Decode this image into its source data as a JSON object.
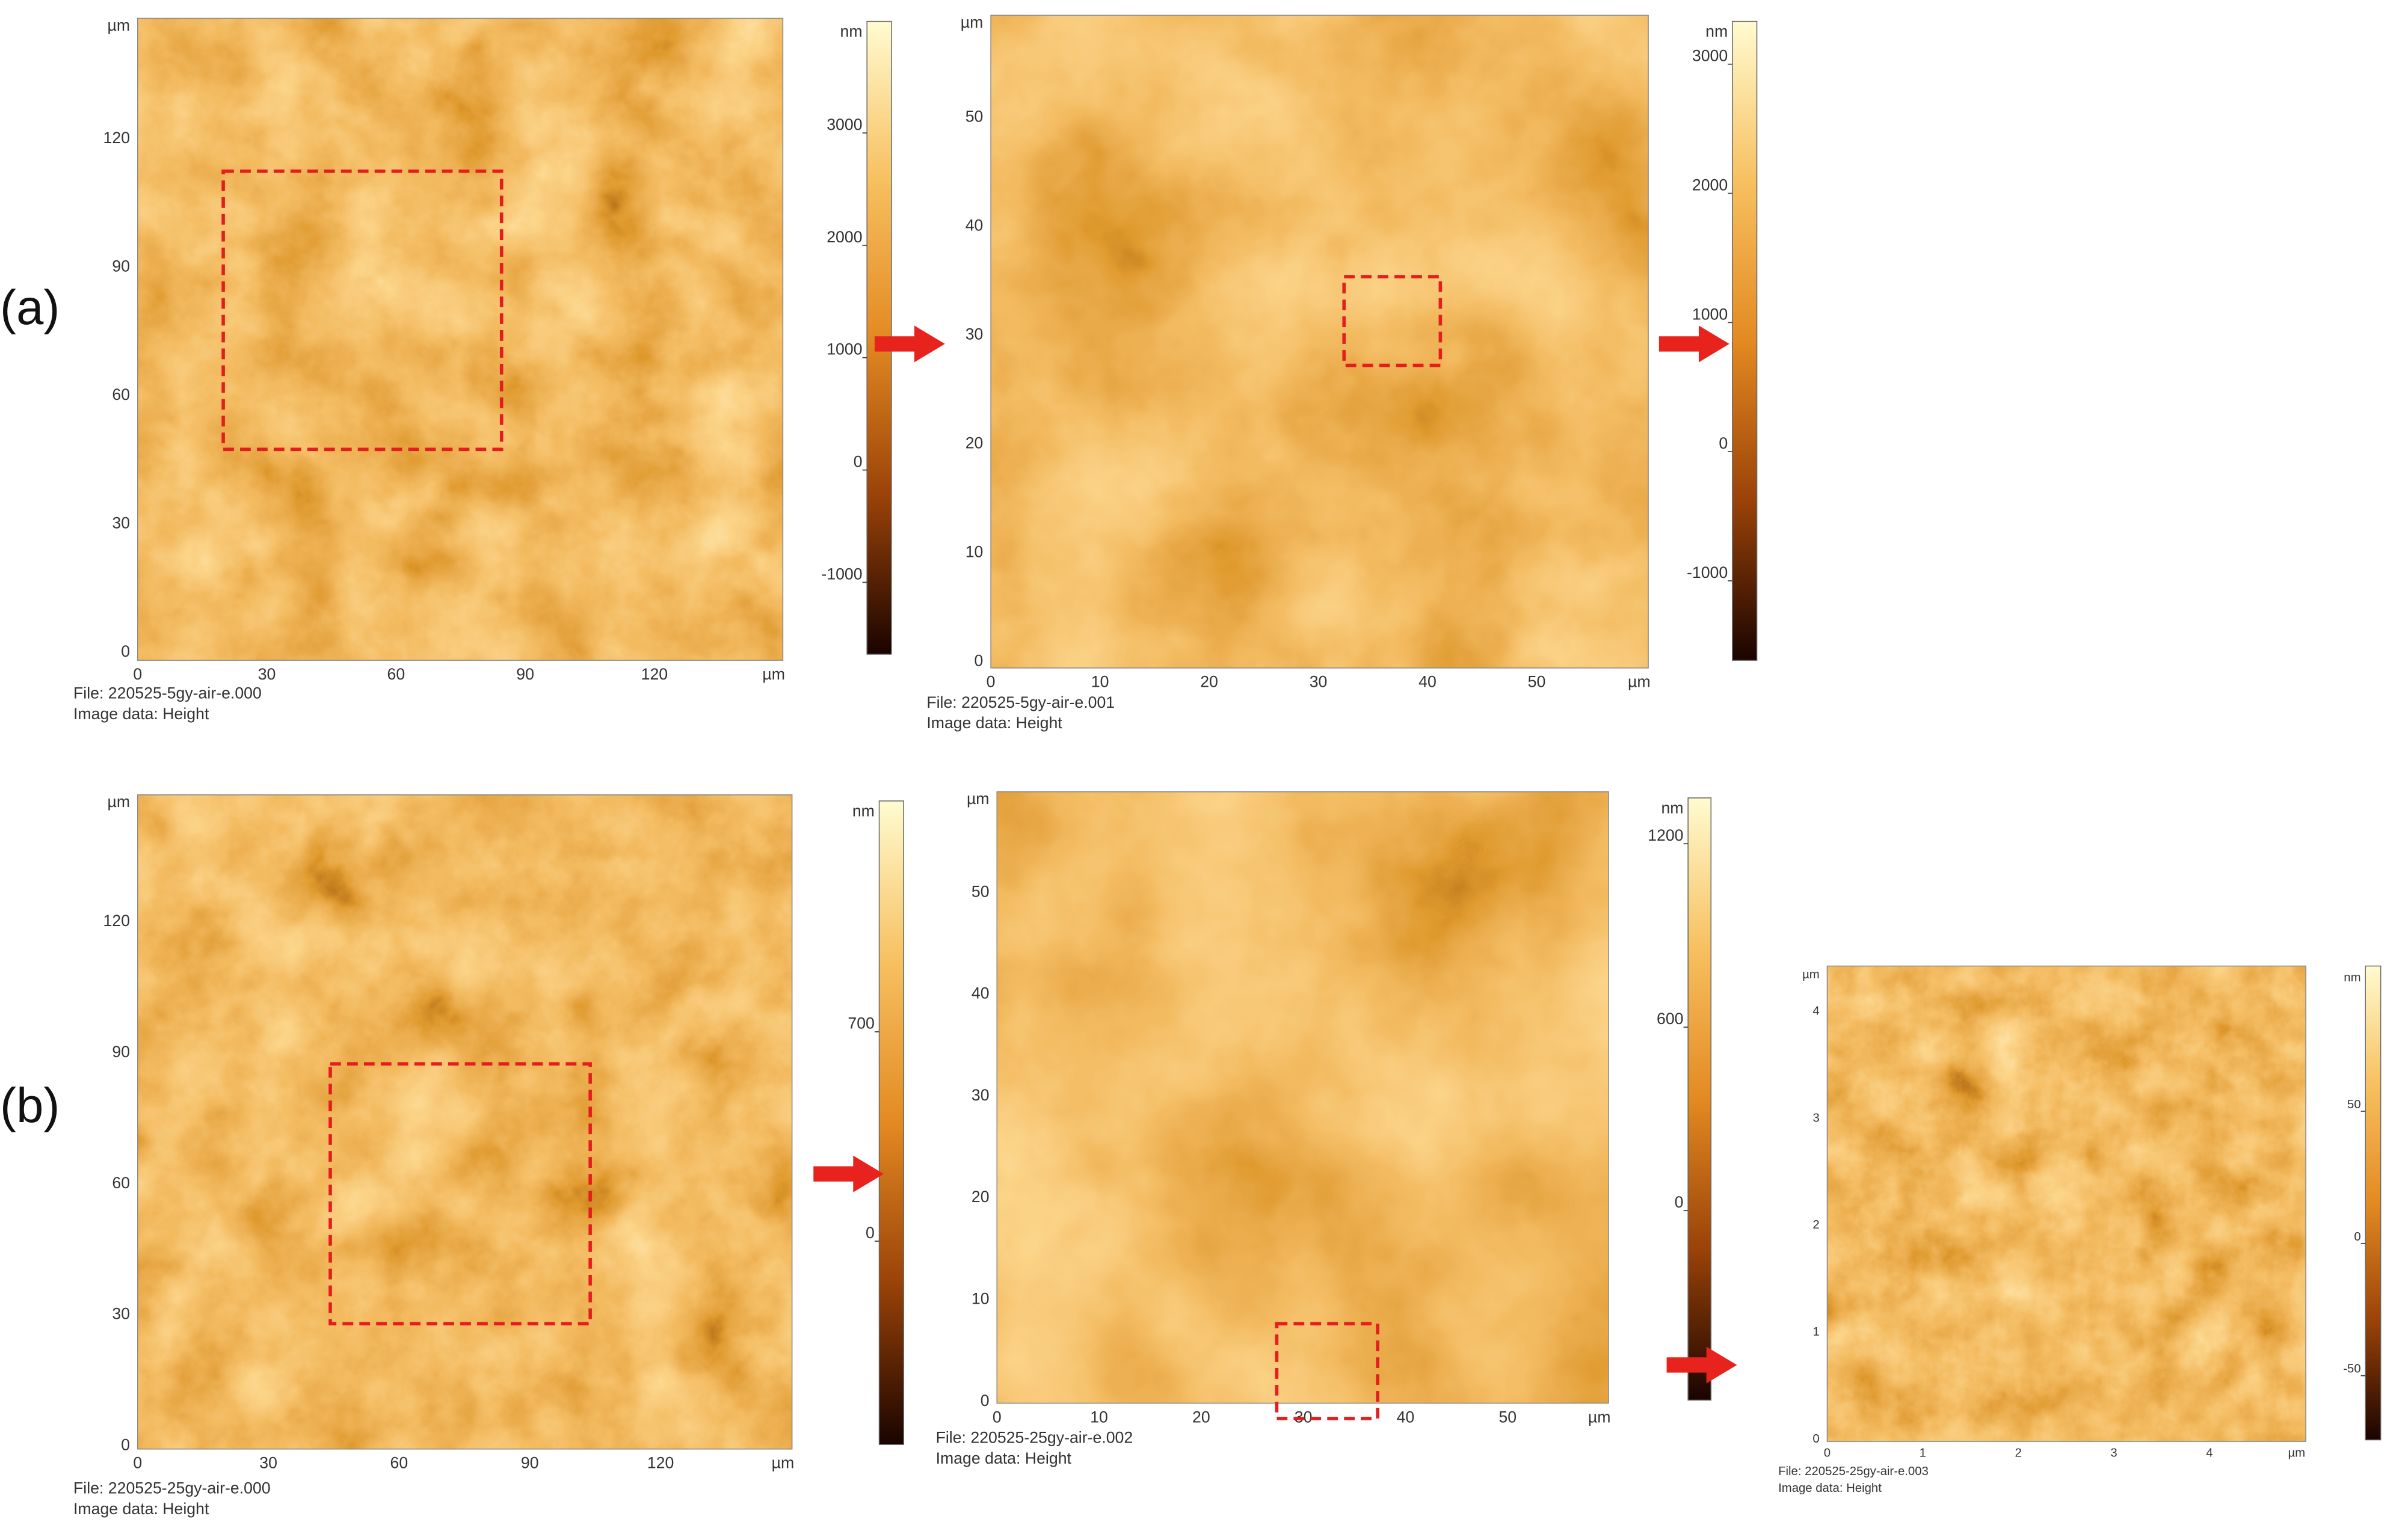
{
  "figure": {
    "panels": [
      {
        "label": "(a)",
        "images": [
          {
            "unit": "µm",
            "x_ticks": [
              0,
              30,
              60,
              90,
              120
            ],
            "y_ticks": [
              0,
              30,
              60,
              90,
              120
            ],
            "file": "File: 220525-5gy-air-e.000",
            "image_data": "Image data: Height",
            "colorbar": {
              "unit": "nm",
              "ticks": [
                -1000,
                0,
                1000,
                2000,
                3000
              ]
            }
          },
          {
            "unit": "µm",
            "x_ticks": [
              0,
              10,
              20,
              30,
              40,
              50
            ],
            "y_ticks": [
              0,
              10,
              20,
              30,
              40,
              50
            ],
            "file": "File: 220525-5gy-air-e.001",
            "image_data": "Image data: Height",
            "colorbar": {
              "unit": "nm",
              "ticks": [
                -1000,
                0,
                1000,
                2000,
                3000
              ]
            }
          }
        ]
      },
      {
        "label": "(b)",
        "images": [
          {
            "unit": "µm",
            "x_ticks": [
              0,
              30,
              60,
              90,
              120
            ],
            "y_ticks": [
              0,
              30,
              60,
              90,
              120
            ],
            "file": "File: 220525-25gy-air-e.000",
            "image_data": "Image data: Height",
            "colorbar": {
              "unit": "nm",
              "ticks": [
                0,
                700
              ]
            }
          },
          {
            "unit": "µm",
            "x_ticks": [
              0,
              10,
              20,
              30,
              40,
              50
            ],
            "y_ticks": [
              0,
              10,
              20,
              30,
              40,
              50
            ],
            "file": "File: 220525-25gy-air-e.002",
            "image_data": "Image data: Height",
            "colorbar": {
              "unit": "nm",
              "ticks": [
                0,
                600,
                1200
              ]
            }
          },
          {
            "unit": "µm",
            "x_ticks": [
              0,
              1,
              2,
              3,
              4
            ],
            "y_ticks": [
              0,
              1,
              2,
              3,
              4
            ],
            "file": "File: 220525-25gy-air-e.003",
            "image_data": "Image data: Height",
            "colorbar": {
              "unit": "nm",
              "ticks": [
                -50,
                0,
                50
              ]
            }
          }
        ]
      }
    ]
  }
}
